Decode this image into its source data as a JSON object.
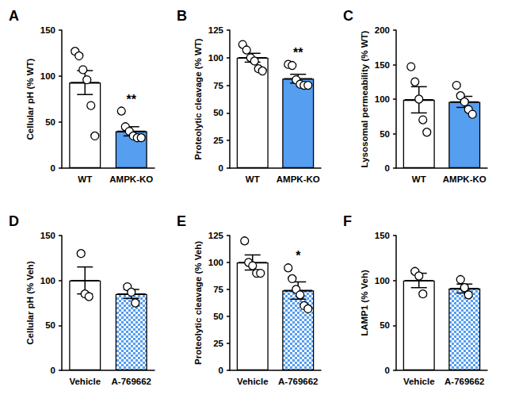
{
  "chart_data": [
    {
      "type": "bar",
      "title": "A",
      "ylabel": "Cellular pH (% WT)",
      "categories": [
        "WT",
        "AMPK-KO"
      ],
      "values": [
        93,
        40
      ],
      "errors": [
        13,
        5
      ],
      "points": [
        [
          127,
          122,
          107,
          96,
          68,
          35
        ],
        [
          62,
          45,
          40,
          35,
          33,
          33
        ]
      ],
      "colors": [
        "#ffffff",
        "#559ef0"
      ],
      "ylim": [
        0,
        150
      ],
      "yticks": [
        0,
        50,
        100,
        150
      ],
      "grid": false,
      "annotations": [
        {
          "category": "AMPK-KO",
          "text": "**"
        }
      ]
    },
    {
      "type": "bar",
      "title": "B",
      "ylabel": "Proteolytic cleavage (% WT)",
      "categories": [
        "WT",
        "AMPK-KO"
      ],
      "values": [
        100,
        81
      ],
      "errors": [
        4,
        4
      ],
      "points": [
        [
          112,
          107,
          100,
          97,
          90,
          88
        ],
        [
          94,
          93,
          80,
          76,
          75,
          75
        ]
      ],
      "colors": [
        "#ffffff",
        "#559ef0"
      ],
      "ylim": [
        0,
        125
      ],
      "yticks": [
        0,
        25,
        50,
        75,
        100,
        125
      ],
      "grid": false,
      "annotations": [
        {
          "category": "AMPK-KO",
          "text": "**"
        }
      ]
    },
    {
      "type": "bar",
      "title": "C",
      "ylabel": "Lysosomal permeability (% WT)",
      "categories": [
        "WT",
        "AMPK-KO"
      ],
      "values": [
        99,
        96
      ],
      "errors": [
        19,
        8
      ],
      "points": [
        [
          147,
          125,
          100,
          70,
          52
        ],
        [
          120,
          105,
          96,
          85,
          78
        ]
      ],
      "colors": [
        "#ffffff",
        "#559ef0"
      ],
      "ylim": [
        0,
        200
      ],
      "yticks": [
        0,
        50,
        100,
        150,
        200
      ],
      "grid": false,
      "annotations": []
    },
    {
      "type": "bar",
      "title": "D",
      "ylabel": "Cellular pH (% Veh)",
      "categories": [
        "Vehicle",
        "A-769662"
      ],
      "values": [
        100,
        85
      ],
      "errors": [
        15,
        5
      ],
      "points": [
        [
          130,
          85,
          82
        ],
        [
          93,
          87,
          75
        ]
      ],
      "colors": [
        "#ffffff",
        "#559ef0"
      ],
      "ylim": [
        0,
        150
      ],
      "yticks": [
        0,
        50,
        100,
        150
      ],
      "grid": false,
      "annotations": []
    },
    {
      "type": "bar",
      "title": "E",
      "ylabel": "Proteolytic cleavage (% Veh)",
      "categories": [
        "Vehicle",
        "A-769662"
      ],
      "values": [
        100,
        74
      ],
      "errors": [
        7,
        8
      ],
      "points": [
        [
          120,
          100,
          97,
          90,
          90
        ],
        [
          95,
          85,
          75,
          70,
          60,
          57
        ]
      ],
      "colors": [
        "#ffffff",
        "#559ef0"
      ],
      "ylim": [
        0,
        125
      ],
      "yticks": [
        0,
        25,
        50,
        75,
        100,
        125
      ],
      "grid": false,
      "annotations": [
        {
          "category": "A-769662",
          "text": "*"
        }
      ]
    },
    {
      "type": "bar",
      "title": "F",
      "ylabel": "LAMP1 (% Veh)",
      "categories": [
        "Vehicle",
        "A-769662"
      ],
      "values": [
        100,
        91
      ],
      "errors": [
        8,
        5
      ],
      "points": [
        [
          110,
          105,
          85
        ],
        [
          101,
          92,
          84
        ]
      ],
      "colors": [
        "#ffffff",
        "#559ef0"
      ],
      "ylim": [
        0,
        150
      ],
      "yticks": [
        0,
        50,
        100,
        150
      ],
      "grid": false,
      "annotations": []
    }
  ]
}
